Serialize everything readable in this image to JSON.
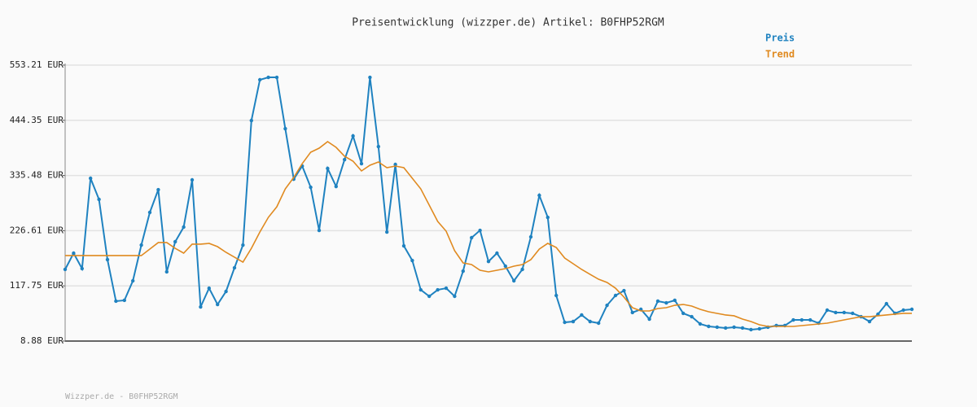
{
  "chart_data": {
    "type": "line",
    "title": "Preisentwicklung (wizzper.de) Artikel: B0FHP52RGM",
    "footer": "Wizzper.de - B0FHP52RGM",
    "ylim": [
      8.88,
      553.21
    ],
    "yticks": [
      {
        "value": 553.21,
        "label": "553.21 EUR"
      },
      {
        "value": 444.35,
        "label": "444.35 EUR"
      },
      {
        "value": 335.48,
        "label": "335.48 EUR"
      },
      {
        "value": 226.61,
        "label": "226.61 EUR"
      },
      {
        "value": 117.75,
        "label": "117.75 EUR"
      },
      {
        "value": 8.88,
        "label": "8.88 EUR"
      }
    ],
    "grid": true,
    "legend": "top-right",
    "series": [
      {
        "name": "Preis",
        "color": "#1f82c0",
        "markers": true,
        "values": [
          150.2,
          182.3,
          151.8,
          330.0,
          288.3,
          169.5,
          87.6,
          89.2,
          127.7,
          198.3,
          262.6,
          307.5,
          145.4,
          204.8,
          233.7,
          326.8,
          76.3,
          113.2,
          81.1,
          106.8,
          153.4,
          198.3,
          444.0,
          524.3,
          529.1,
          529.1,
          427.9,
          328.4,
          354.1,
          312.3,
          227.2,
          349.3,
          313.9,
          366.9,
          413.5,
          358.9,
          529.1,
          392.6,
          224.0,
          357.3,
          196.7,
          167.8,
          110.0,
          97.2,
          110.0,
          113.2,
          97.2,
          146.9,
          212.8,
          227.2,
          165.9,
          182.3,
          156.6,
          127.7,
          150.2,
          214.4,
          296.3,
          252.9,
          98.8,
          45.8,
          47.4,
          60.3,
          47.4,
          44.2,
          79.5,
          98.8,
          108.4,
          65.1,
          71.5,
          52.2,
          87.6,
          84.3,
          89.2,
          63.5,
          57.0,
          42.6,
          37.8,
          36.2,
          34.6,
          36.2,
          34.6,
          31.4,
          33.0,
          36.2,
          39.4,
          39.4,
          50.6,
          50.6,
          50.6,
          44.2,
          69.9,
          65.1,
          65.1,
          63.5,
          57.0,
          47.4,
          61.9,
          82.7,
          63.5,
          69.9,
          71.5
        ]
      },
      {
        "name": "Trend",
        "color": "#e08a20",
        "markers": false,
        "values": [
          177.5,
          177.5,
          177.5,
          177.5,
          177.5,
          177.5,
          177.5,
          177.5,
          177.5,
          177.5,
          190.3,
          203.2,
          203.2,
          191.9,
          182.3,
          200.0,
          200.0,
          201.6,
          195.1,
          183.9,
          174.3,
          164.6,
          191.9,
          224.0,
          252.9,
          273.8,
          309.1,
          331.6,
          358.9,
          381.4,
          389.4,
          402.3,
          391.0,
          373.4,
          363.7,
          344.5,
          355.7,
          362.1,
          350.9,
          354.1,
          350.9,
          330.0,
          309.1,
          277.0,
          244.9,
          225.6,
          187.1,
          163.0,
          159.8,
          148.6,
          145.4,
          148.6,
          151.8,
          156.6,
          159.8,
          169.5,
          190.3,
          201.6,
          193.5,
          172.6,
          161.4,
          150.2,
          140.5,
          130.9,
          124.5,
          113.2,
          95.6,
          74.7,
          68.3,
          68.3,
          73.1,
          74.7,
          79.5,
          81.1,
          77.9,
          71.5,
          66.7,
          63.5,
          60.3,
          58.7,
          52.2,
          47.4,
          41.0,
          37.8,
          37.8,
          37.8,
          37.8,
          39.4,
          41.0,
          42.6,
          44.2,
          47.4,
          50.6,
          53.8,
          57.0,
          57.0,
          58.7,
          60.3,
          61.9,
          63.5,
          63.5
        ]
      }
    ]
  }
}
